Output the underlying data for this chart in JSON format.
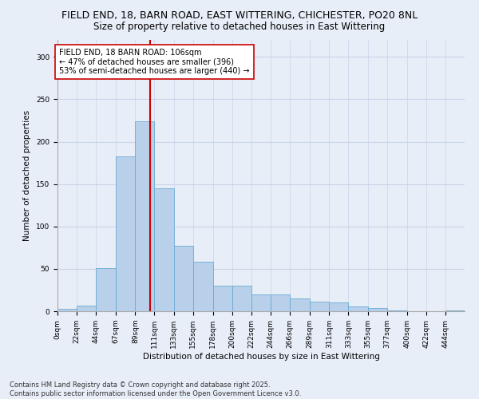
{
  "title1": "FIELD END, 18, BARN ROAD, EAST WITTERING, CHICHESTER, PO20 8NL",
  "title2": "Size of property relative to detached houses in East Wittering",
  "xlabel": "Distribution of detached houses by size in East Wittering",
  "ylabel": "Number of detached properties",
  "bar_color": "#b8d0ea",
  "bar_edge_color": "#6aaad4",
  "grid_color": "#c8d4e8",
  "background_color": "#e8eef8",
  "bin_labels": [
    "0sqm",
    "22sqm",
    "44sqm",
    "67sqm",
    "89sqm",
    "111sqm",
    "133sqm",
    "155sqm",
    "178sqm",
    "200sqm",
    "222sqm",
    "244sqm",
    "266sqm",
    "289sqm",
    "311sqm",
    "333sqm",
    "355sqm",
    "377sqm",
    "400sqm",
    "422sqm",
    "444sqm"
  ],
  "bar_heights": [
    3,
    7,
    51,
    183,
    224,
    145,
    77,
    58,
    30,
    30,
    20,
    20,
    15,
    11,
    10,
    6,
    4,
    1,
    0,
    0,
    1
  ],
  "bin_edges": [
    0,
    22,
    44,
    67,
    89,
    111,
    133,
    155,
    178,
    200,
    222,
    244,
    266,
    289,
    311,
    333,
    355,
    377,
    400,
    422,
    444,
    466
  ],
  "vline_x": 106,
  "vline_color": "#cc0000",
  "annotation_text": "FIELD END, 18 BARN ROAD: 106sqm\n← 47% of detached houses are smaller (396)\n53% of semi-detached houses are larger (440) →",
  "annotation_box_color": "#ffffff",
  "annotation_box_edge": "#cc0000",
  "ylim": [
    0,
    320
  ],
  "yticks": [
    0,
    50,
    100,
    150,
    200,
    250,
    300
  ],
  "footer1": "Contains HM Land Registry data © Crown copyright and database right 2025.",
  "footer2": "Contains public sector information licensed under the Open Government Licence v3.0.",
  "title_fontsize": 9,
  "subtitle_fontsize": 8.5,
  "axis_label_fontsize": 7.5,
  "tick_fontsize": 6.5,
  "annotation_fontsize": 7,
  "footer_fontsize": 6
}
